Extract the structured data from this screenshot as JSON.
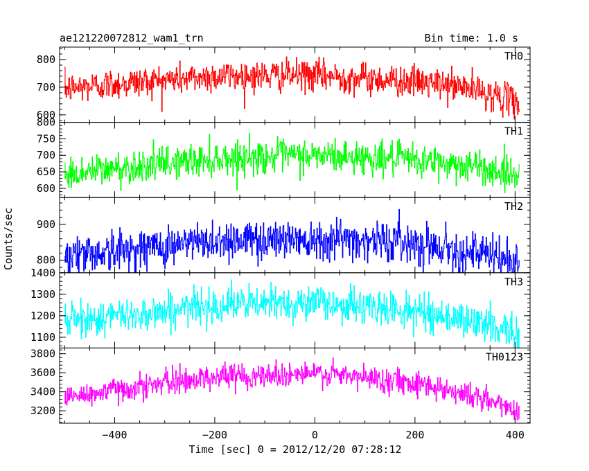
{
  "chart_data": {
    "type": "line",
    "header_left": "ae121220072812_wam1_trn",
    "header_right": "Bin time: 1.0 s",
    "xlabel": "Time [sec] 0 = 2012/12/20 07:28:12",
    "ylabel": "Counts/sec",
    "xlim": [
      -510,
      430
    ],
    "xticks": [
      -400,
      -200,
      0,
      200,
      400
    ],
    "xtick_labels": [
      "−400",
      "−200",
      "0",
      "200",
      "400"
    ],
    "grid": false,
    "panels": [
      {
        "name": "TH0",
        "color": "#ff0000",
        "ylim": [
          573,
          845
        ],
        "yticks": [
          600,
          700,
          800
        ],
        "ytick_labels": [
          "600",
          "700",
          "800"
        ],
        "x_range": [
          -500,
          408
        ],
        "trend": [
          [
            -500,
            695
          ],
          [
            -400,
            712
          ],
          [
            -200,
            740
          ],
          [
            0,
            743
          ],
          [
            200,
            720
          ],
          [
            300,
            700
          ],
          [
            408,
            645
          ]
        ],
        "noise_sd": 28
      },
      {
        "name": "TH1",
        "color": "#00ff00",
        "ylim": [
          572,
          800
        ],
        "yticks": [
          600,
          650,
          700,
          750,
          800
        ],
        "ytick_labels": [
          "600",
          "650",
          "700",
          "750",
          "800"
        ],
        "x_range": [
          -500,
          408
        ],
        "trend": [
          [
            -500,
            640
          ],
          [
            -400,
            660
          ],
          [
            -200,
            690
          ],
          [
            0,
            700
          ],
          [
            200,
            685
          ],
          [
            300,
            670
          ],
          [
            408,
            640
          ]
        ],
        "noise_sd": 25
      },
      {
        "name": "TH2",
        "color": "#0000ff",
        "ylim": [
          765,
          975
        ],
        "yticks": [
          800,
          900
        ],
        "ytick_labels": [
          "800",
          "900"
        ],
        "x_range": [
          -500,
          408
        ],
        "trend": [
          [
            -500,
            815
          ],
          [
            -400,
            825
          ],
          [
            -200,
            855
          ],
          [
            0,
            862
          ],
          [
            200,
            850
          ],
          [
            300,
            825
          ],
          [
            408,
            795
          ]
        ],
        "noise_sd": 28
      },
      {
        "name": "TH3",
        "color": "#00ffff",
        "ylim": [
          1050,
          1400
        ],
        "yticks": [
          1100,
          1200,
          1300,
          1400
        ],
        "ytick_labels": [
          "1100",
          "1200",
          "1300",
          "1400"
        ],
        "x_range": [
          -500,
          408
        ],
        "trend": [
          [
            -500,
            1175
          ],
          [
            -400,
            1195
          ],
          [
            -200,
            1250
          ],
          [
            0,
            1262
          ],
          [
            200,
            1220
          ],
          [
            300,
            1180
          ],
          [
            408,
            1125
          ]
        ],
        "noise_sd": 40
      },
      {
        "name": "TH0123",
        "color": "#ff00ff",
        "ylim": [
          3070,
          3860
        ],
        "yticks": [
          3200,
          3400,
          3600,
          3800
        ],
        "ytick_labels": [
          "3200",
          "3400",
          "3600",
          "3800"
        ],
        "x_range": [
          -500,
          408
        ],
        "trend": [
          [
            -500,
            3330
          ],
          [
            -400,
            3420
          ],
          [
            -200,
            3560
          ],
          [
            0,
            3590
          ],
          [
            200,
            3500
          ],
          [
            300,
            3380
          ],
          [
            408,
            3200
          ]
        ],
        "noise_sd": 65
      }
    ]
  }
}
